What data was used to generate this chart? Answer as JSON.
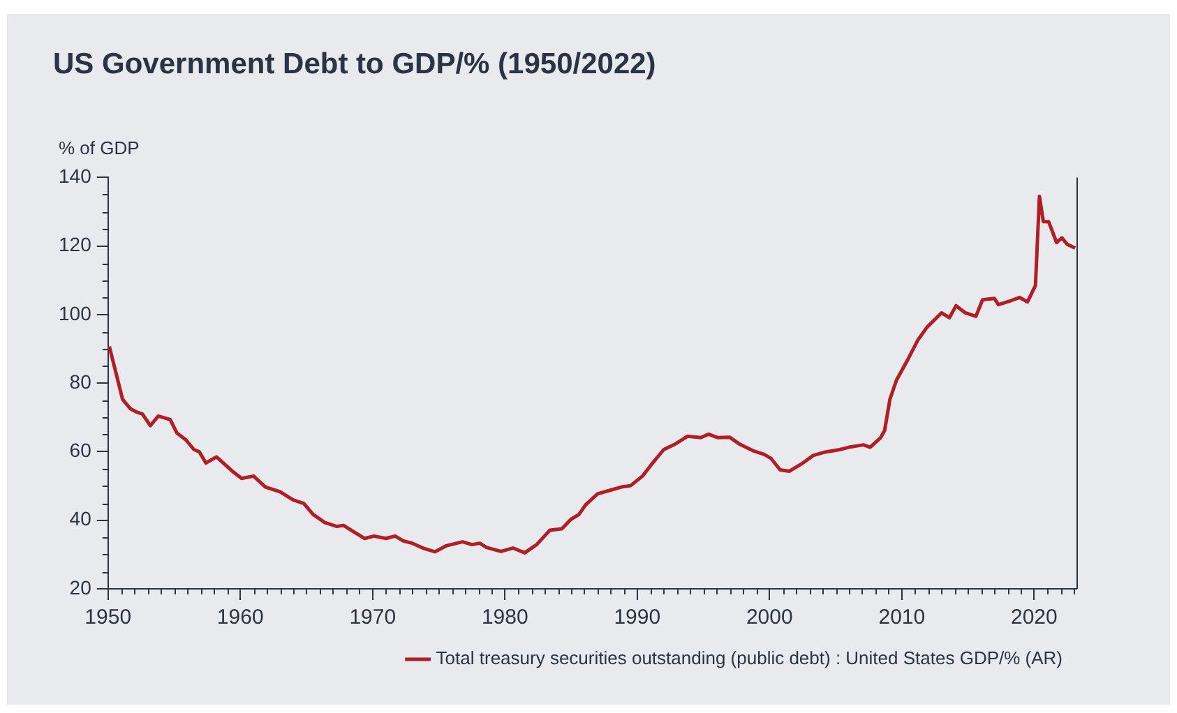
{
  "chart_data": {
    "type": "line",
    "title": "US Government Debt to GDP/% (1950/2022)",
    "ylabel": "% of GDP",
    "xlim": [
      1950,
      2023.2
    ],
    "xticks": [
      1950,
      1960,
      1970,
      1980,
      1990,
      2000,
      2010,
      2020
    ],
    "ylim": [
      20,
      140
    ],
    "yticks": [
      20,
      40,
      60,
      80,
      100,
      120,
      140
    ],
    "grid": false,
    "legend": "bottom right",
    "marker": "none",
    "line_style": "solid",
    "series": [
      {
        "name": "Total treasury securities outstanding (public debt) : United States GDP/% (AR)",
        "color": "#b01f26",
        "x": [
          1950.1,
          1950.6,
          1951.1,
          1951.7,
          1952.2,
          1952.6,
          1953.2,
          1953.8,
          1954.7,
          1955.2,
          1955.9,
          1956.5,
          1956.9,
          1957.4,
          1958.2,
          1959.4,
          1960.1,
          1961,
          1961.9,
          1963,
          1964,
          1964.8,
          1965.5,
          1966.4,
          1967.3,
          1967.8,
          1968.5,
          1969.4,
          1970.1,
          1971,
          1971.7,
          1972.3,
          1973,
          1973.8,
          1974.7,
          1975.6,
          1976.8,
          1977.5,
          1978.1,
          1978.6,
          1979.7,
          1980.6,
          1981.5,
          1982.4,
          1983.4,
          1984.3,
          1985,
          1985.6,
          1986.1,
          1987,
          1987.9,
          1988.8,
          1989.5,
          1990.4,
          1991.1,
          1992,
          1992.9,
          1993.8,
          1994.8,
          1995.4,
          1996.1,
          1997,
          1997.7,
          1998.8,
          1999.6,
          2000.1,
          2000.8,
          2001.5,
          2002.4,
          2003.3,
          2004.2,
          2005.3,
          2006,
          2007.1,
          2007.6,
          2008.4,
          2008.7,
          2009.1,
          2009.6,
          2010.4,
          2011.2,
          2011.9,
          2013,
          2013.6,
          2014.1,
          2014.8,
          2015.6,
          2016.1,
          2017,
          2017.3,
          2018.2,
          2018.9,
          2019.5,
          2020.1,
          2020.4,
          2020.7,
          2021.1,
          2021.7,
          2022.1,
          2022.5,
          2023.1
        ],
        "values": [
          90.7,
          83,
          75.3,
          72.5,
          71.5,
          71,
          67.6,
          70.4,
          69.4,
          65.5,
          63.4,
          60.6,
          60,
          56.7,
          58.5,
          54.3,
          52.2,
          52.9,
          49.7,
          48.3,
          45.9,
          44.9,
          41.7,
          39.3,
          38.2,
          38.5,
          36.8,
          34.7,
          35.4,
          34.7,
          35.4,
          34,
          33.3,
          31.9,
          30.8,
          32.6,
          33.7,
          32.9,
          33.3,
          32.1,
          30.9,
          31.9,
          30.5,
          32.9,
          37.1,
          37.5,
          40.3,
          41.7,
          44.5,
          47.7,
          48.7,
          49.7,
          50.1,
          52.9,
          56.4,
          60.6,
          62.3,
          64.5,
          64.1,
          65.1,
          64.1,
          64.2,
          62.3,
          60.2,
          59.2,
          58.1,
          54.7,
          54.3,
          56.4,
          58.9,
          59.9,
          60.6,
          61.3,
          62,
          61.3,
          64.1,
          66.2,
          75.3,
          80.9,
          86.5,
          92.5,
          96.3,
          100.5,
          99.1,
          102.6,
          100.5,
          99.5,
          104.3,
          104.7,
          102.9,
          104,
          105,
          103.7,
          108.5,
          134.5,
          127.1,
          127.1,
          121,
          122.4,
          120.5,
          119.4
        ]
      }
    ]
  }
}
